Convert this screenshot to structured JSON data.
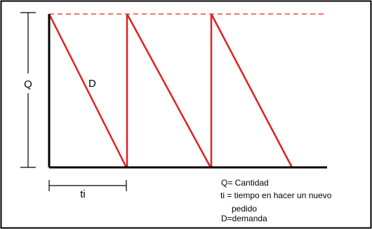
{
  "diagram": {
    "labels": {
      "quantity": "Q",
      "demand": "D",
      "interval": "ti"
    },
    "legend": [
      "Q= Cantidad",
      "ti = tiempo en hacer un nuevo",
      "pedido",
      "D=demanda"
    ],
    "colors": {
      "sawtooth": "#e02020",
      "max_level": "#e02020",
      "axes": "#000000",
      "frame": "#000000"
    },
    "cycles": 3
  }
}
